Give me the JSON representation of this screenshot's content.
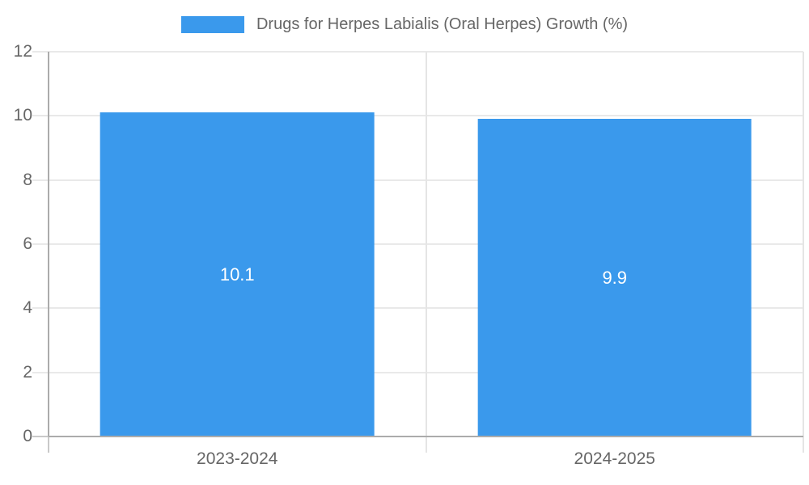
{
  "chart_data": {
    "type": "bar",
    "title": "",
    "legend": {
      "position": "top",
      "label": "Drugs for Herpes Labialis (Oral Herpes) Growth (%)"
    },
    "categories": [
      "2023-2024",
      "2024-2025"
    ],
    "series": [
      {
        "name": "Drugs for Herpes Labialis (Oral Herpes) Growth (%)",
        "values": [
          10.1,
          9.9
        ]
      }
    ],
    "data_labels": [
      "10.1",
      "9.9"
    ],
    "ylabel": "",
    "xlabel": "",
    "ylim": [
      0,
      12
    ],
    "y_ticks": [
      0,
      2,
      4,
      6,
      8,
      10,
      12
    ],
    "grid": true,
    "colors": {
      "bar": "#3A99EC",
      "bar_label_text": "#FFFFFF",
      "gridline": "#E9E9E9",
      "tick_light": "#E5E5E5",
      "tick_dark": "#C9C9C9",
      "axis_line": "#ABABAB",
      "axis_text": "#666666",
      "background": "#FFFFFF"
    }
  }
}
